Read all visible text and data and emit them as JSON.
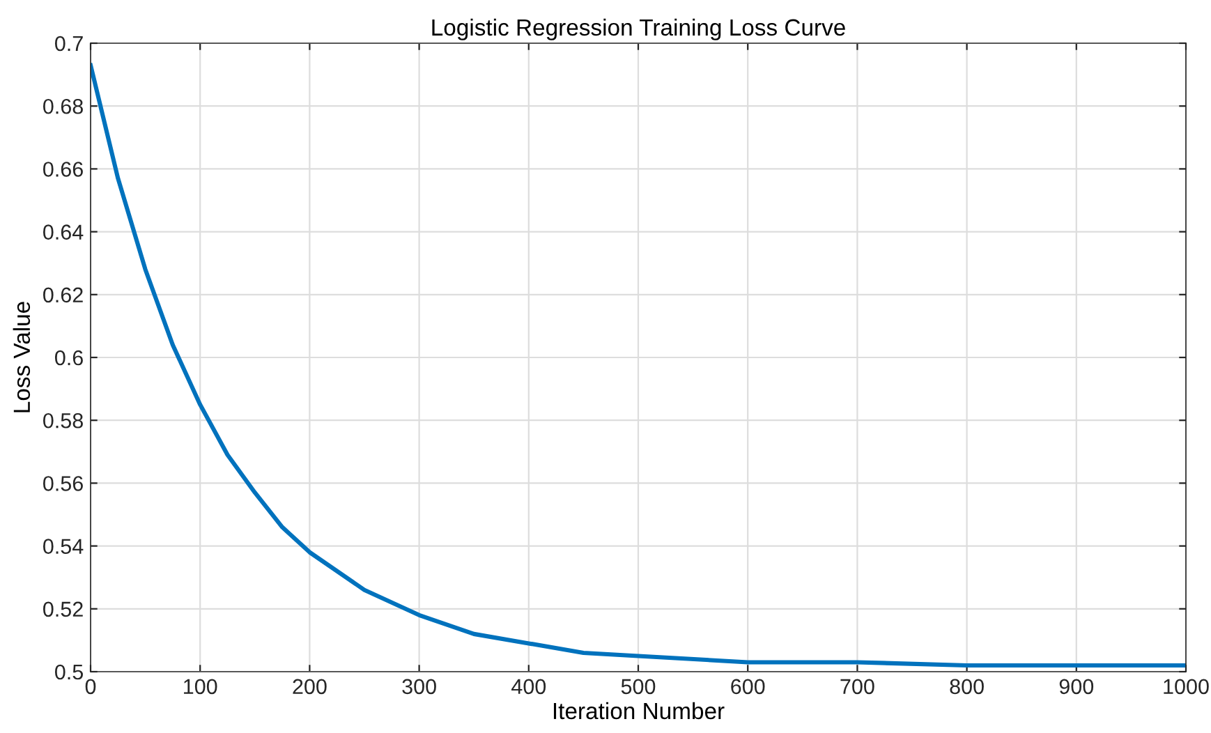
{
  "chart_data": {
    "type": "line",
    "title": "Logistic Regression Training Loss Curve",
    "xlabel": "Iteration Number",
    "ylabel": "Loss Value",
    "x": [
      0,
      25,
      50,
      75,
      100,
      125,
      150,
      175,
      200,
      250,
      300,
      350,
      400,
      450,
      500,
      600,
      700,
      800,
      900,
      1000
    ],
    "series": [
      {
        "color": "#0072bd",
        "values": [
          0.693,
          0.657,
          0.628,
          0.604,
          0.585,
          0.569,
          0.557,
          0.546,
          0.538,
          0.526,
          0.518,
          0.512,
          0.509,
          0.506,
          0.505,
          0.503,
          0.503,
          0.502,
          0.502,
          0.502
        ]
      }
    ],
    "xlim": [
      0,
      1000
    ],
    "ylim": [
      0.5,
      0.7
    ],
    "xticks": [
      0,
      100,
      200,
      300,
      400,
      500,
      600,
      700,
      800,
      900,
      1000
    ],
    "yticks": [
      0.5,
      0.52,
      0.54,
      0.56,
      0.58,
      0.6,
      0.62,
      0.64,
      0.66,
      0.68,
      0.7
    ],
    "grid": true,
    "line_style": "solid",
    "marker": "none"
  }
}
